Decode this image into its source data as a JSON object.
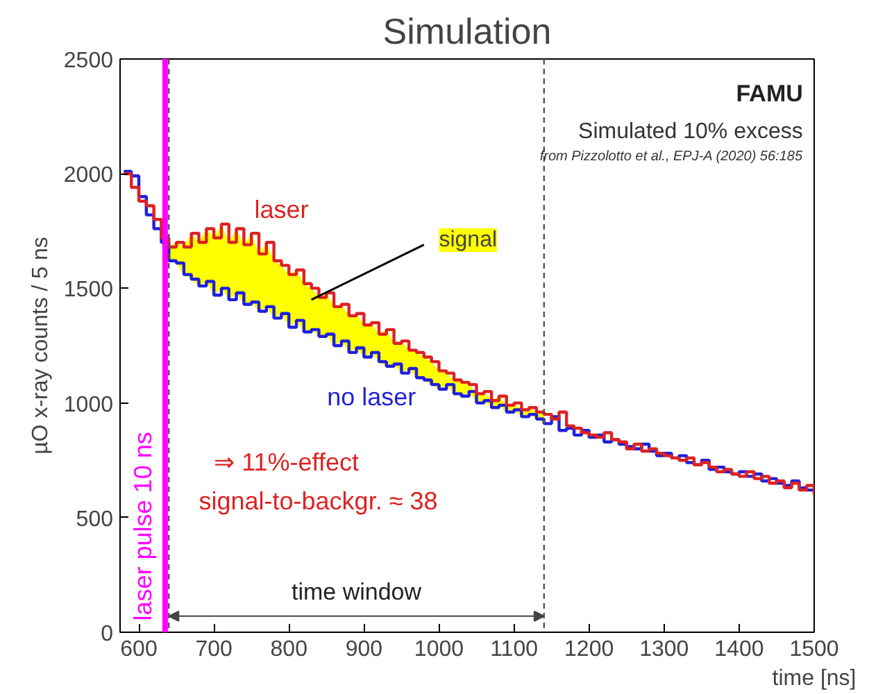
{
  "chart_data": {
    "type": "step",
    "title": "Simulation",
    "xlabel": "time [ns]",
    "ylabel": "µO x-ray counts / 5 ns",
    "x": [
      580,
      590,
      600,
      610,
      620,
      630,
      640,
      650,
      660,
      670,
      680,
      690,
      700,
      710,
      720,
      730,
      740,
      750,
      760,
      770,
      780,
      790,
      800,
      810,
      820,
      830,
      840,
      850,
      860,
      870,
      880,
      890,
      900,
      910,
      920,
      930,
      940,
      950,
      960,
      970,
      980,
      990,
      1000,
      1010,
      1020,
      1030,
      1040,
      1050,
      1060,
      1070,
      1080,
      1090,
      1100,
      1110,
      1120,
      1130,
      1140,
      1150,
      1160,
      1170,
      1180,
      1190,
      1200,
      1210,
      1220,
      1230,
      1240,
      1250,
      1260,
      1270,
      1280,
      1290,
      1300,
      1310,
      1320,
      1330,
      1340,
      1350,
      1360,
      1370,
      1380,
      1390,
      1400,
      1410,
      1420,
      1430,
      1440,
      1450,
      1460,
      1470,
      1480,
      1490,
      1500
    ],
    "series": [
      {
        "name": "no laser",
        "color": "#1f1fdd",
        "values": [
          2010,
          1990,
          1900,
          1820,
          1760,
          1700,
          1620,
          1610,
          1560,
          1540,
          1510,
          1530,
          1470,
          1500,
          1450,
          1480,
          1430,
          1440,
          1400,
          1420,
          1370,
          1390,
          1330,
          1360,
          1310,
          1320,
          1290,
          1300,
          1250,
          1270,
          1220,
          1240,
          1200,
          1220,
          1180,
          1160,
          1170,
          1130,
          1150,
          1110,
          1100,
          1080,
          1060,
          1080,
          1040,
          1030,
          1050,
          1000,
          1010,
          980,
          990,
          960,
          970,
          940,
          950,
          930,
          910,
          940,
          880,
          890,
          860,
          880,
          850,
          860,
          830,
          840,
          820,
          810,
          800,
          820,
          790,
          770,
          780,
          760,
          770,
          740,
          730,
          750,
          710,
          720,
          700,
          690,
          700,
          680,
          690,
          660,
          670,
          650,
          640,
          660,
          630,
          620,
          610
        ]
      },
      {
        "name": "laser",
        "color": "#dd2222",
        "values": [
          2000,
          1940,
          1880,
          1860,
          1800,
          1720,
          1680,
          1700,
          1680,
          1740,
          1700,
          1760,
          1720,
          1780,
          1700,
          1760,
          1690,
          1740,
          1650,
          1700,
          1620,
          1600,
          1560,
          1580,
          1520,
          1500,
          1460,
          1480,
          1420,
          1430,
          1380,
          1390,
          1340,
          1350,
          1300,
          1320,
          1260,
          1270,
          1230,
          1220,
          1200,
          1180,
          1140,
          1130,
          1100,
          1090,
          1080,
          1040,
          1050,
          1010,
          1030,
          990,
          1000,
          970,
          980,
          960,
          950,
          930,
          960,
          900,
          890,
          870,
          860,
          850,
          870,
          840,
          830,
          800,
          820,
          790,
          800,
          780,
          770,
          760,
          750,
          760,
          730,
          740,
          720,
          700,
          710,
          690,
          680,
          700,
          670,
          680,
          650,
          660,
          630,
          650,
          620,
          640,
          600
        ],
        "lower": [
          null,
          null,
          null,
          null,
          null,
          null,
          1620,
          1610,
          1560,
          1540,
          1510,
          1530,
          1470,
          1500,
          1450,
          1480,
          1430,
          1440,
          1400,
          1420,
          1370,
          1390,
          1330,
          1360,
          1310,
          1320,
          1290,
          1300,
          1250,
          1270,
          1220,
          1240,
          1200,
          1220,
          1180,
          1160,
          1170,
          1130,
          1150,
          1110,
          1100,
          1080,
          1060,
          1080,
          1040,
          1030,
          1050,
          1000,
          1010,
          980,
          990,
          960,
          970,
          940,
          950,
          930,
          910,
          null,
          null,
          null,
          null,
          null,
          null,
          null,
          null,
          null,
          null,
          null,
          null,
          null,
          null,
          null,
          null,
          null,
          null,
          null,
          null,
          null,
          null,
          null,
          null,
          null,
          null,
          null,
          null,
          null,
          null,
          null,
          null,
          null,
          null,
          null,
          null
        ],
        "upper": [
          null,
          null,
          null,
          null,
          null,
          null,
          1680,
          1700,
          1680,
          1740,
          1700,
          1760,
          1720,
          1780,
          1700,
          1760,
          1690,
          1740,
          1650,
          1700,
          1620,
          1600,
          1560,
          1580,
          1520,
          1500,
          1460,
          1480,
          1420,
          1430,
          1380,
          1390,
          1340,
          1350,
          1300,
          1320,
          1260,
          1270,
          1230,
          1220,
          1200,
          1180,
          1140,
          1130,
          1100,
          1090,
          1080,
          1040,
          1050,
          1010,
          1030,
          990,
          1000,
          970,
          980,
          960,
          950,
          null,
          null,
          null,
          null,
          null,
          null,
          null,
          null,
          null,
          null,
          null,
          null,
          null,
          null,
          null,
          null,
          null,
          null,
          null,
          null,
          null,
          null,
          null,
          null,
          null,
          null,
          null,
          null,
          null,
          null,
          null,
          null,
          null,
          null,
          null,
          null
        ]
      }
    ],
    "xlim": [
      575,
      1500
    ],
    "xticks": [
      600,
      700,
      800,
      900,
      1000,
      1100,
      1200,
      1300,
      1400,
      1500
    ],
    "ylim": [
      0,
      2500
    ],
    "yticks": [
      0,
      500,
      1000,
      1500,
      2000,
      2500
    ],
    "ref_lines": [
      {
        "axis": "x",
        "value": 635,
        "label": "laser pulse 10 ns",
        "color": "#ff00ff",
        "line_style": "solid"
      },
      {
        "axis": "x",
        "value": 640,
        "color": "#555555",
        "line_style": "dashed"
      },
      {
        "axis": "x",
        "value": 1140,
        "color": "#555555",
        "line_style": "dashed"
      }
    ],
    "annotations": [
      "time window",
      "FAMU",
      "Simulated 10% excess",
      "from Pizzolotto et al., EPJ-A (2020) 56:185",
      "⇒   11%-effect",
      "signal-to-backgr. ≈  38",
      {
        "text": "signal",
        "x": 830,
        "y": 1450
      }
    ],
    "grid": false
  }
}
